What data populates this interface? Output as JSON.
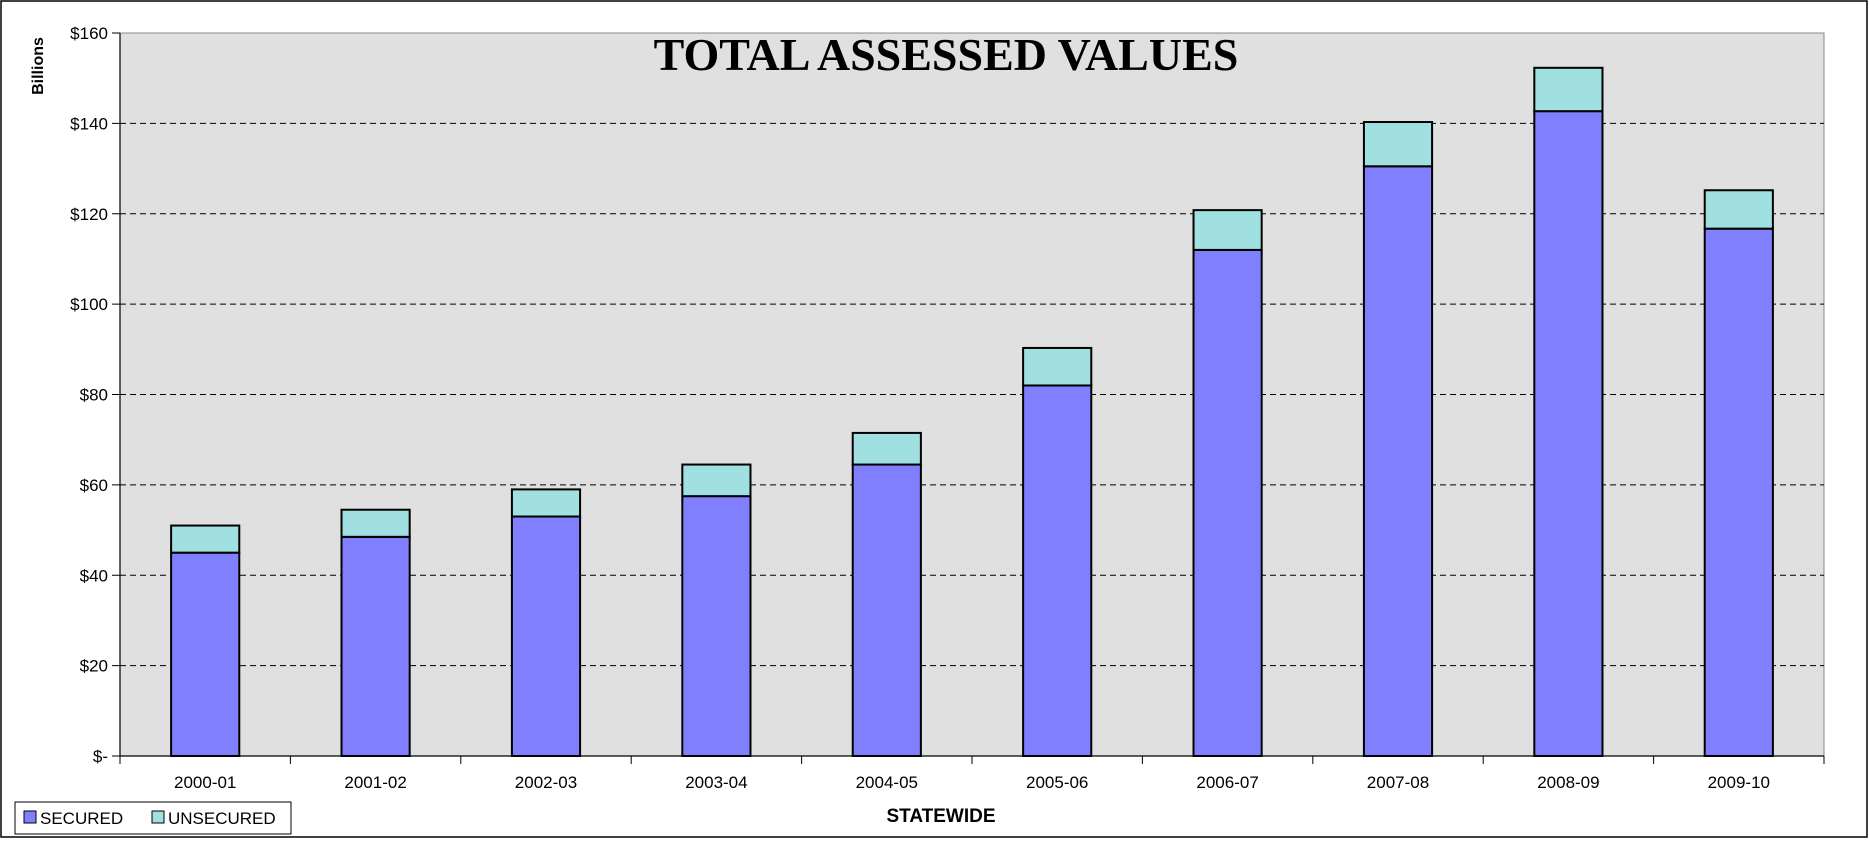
{
  "chart_data": {
    "type": "bar",
    "stacked": true,
    "title": "TOTAL ASSESSED VALUES",
    "xlabel": "STATEWIDE",
    "ylabel": "Billions",
    "ylim": [
      0,
      160
    ],
    "yticks": [
      0,
      20,
      40,
      60,
      80,
      100,
      120,
      140,
      160
    ],
    "ytick_labels": [
      "$-",
      "$20",
      "$40",
      "$60",
      "$80",
      "$100",
      "$120",
      "$140",
      "$160"
    ],
    "grid": "horizontal dashed",
    "legend_position": "bottom-left",
    "categories": [
      "2000-01",
      "2001-02",
      "2002-03",
      "2003-04",
      "2004-05",
      "2005-06",
      "2006-07",
      "2007-08",
      "2008-09",
      "2009-10"
    ],
    "series": [
      {
        "name": "SECURED",
        "color": "#8080ff",
        "values": [
          45,
          48.5,
          53,
          57.5,
          64.5,
          82,
          112,
          130.5,
          142.7,
          116.7
        ]
      },
      {
        "name": "UNSECURED",
        "color": "#a0e0e0",
        "values": [
          6,
          6,
          6,
          7,
          7,
          8.3,
          8.8,
          9.8,
          9.6,
          8.5
        ]
      }
    ]
  }
}
